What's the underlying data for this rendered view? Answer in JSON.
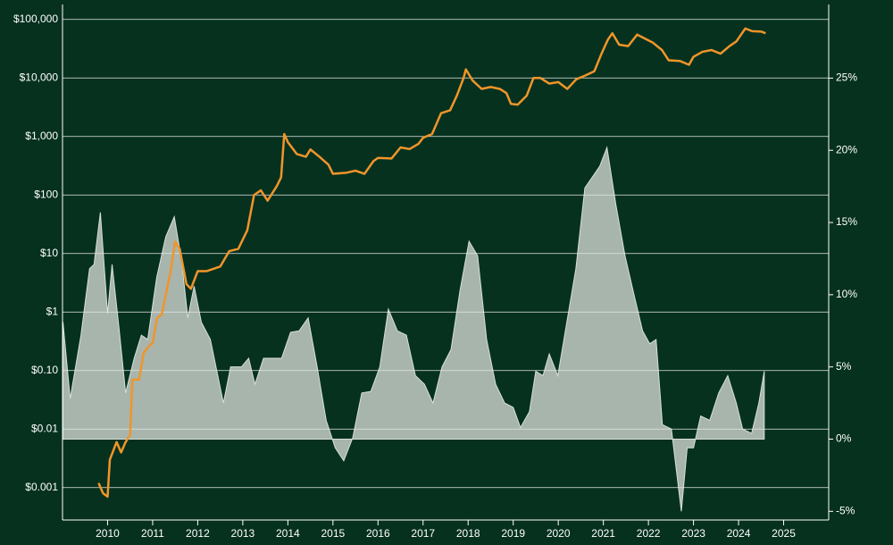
{
  "chart_data": {
    "type": "line-area",
    "xlim": [
      2009,
      2026
    ],
    "xticks": [
      2010,
      2011,
      2012,
      2013,
      2014,
      2015,
      2016,
      2017,
      2018,
      2019,
      2020,
      2021,
      2022,
      2023,
      2024,
      2025
    ],
    "ylim": [
      0.00028,
      180000
    ],
    "log_y": true,
    "yticks": [
      {
        "value": 0.001,
        "label": "$0.001"
      },
      {
        "value": 0.01,
        "label": "$0.01"
      },
      {
        "value": 0.1,
        "label": "$0.10"
      },
      {
        "value": 1,
        "label": "$1"
      },
      {
        "value": 10,
        "label": "$10"
      },
      {
        "value": 100,
        "label": "$100"
      },
      {
        "value": 1000,
        "label": "$1,000"
      },
      {
        "value": 10000,
        "label": "$10,000"
      },
      {
        "value": 100000,
        "label": "$100,000"
      }
    ],
    "y2lim": [
      -5.6,
      30.1
    ],
    "y2ticks": [
      {
        "value": -5,
        "label": "-5%"
      },
      {
        "value": 0,
        "label": "0%"
      },
      {
        "value": 5,
        "label": "5%"
      },
      {
        "value": 10,
        "label": "10%"
      },
      {
        "value": 15,
        "label": "15%"
      },
      {
        "value": 20,
        "label": "20%"
      },
      {
        "value": 25,
        "label": "25%"
      }
    ],
    "grid": true,
    "series": [
      {
        "kind": "area",
        "axis": "y2",
        "color": "#b9c4bc",
        "x": [
          2009.01,
          2009.17,
          2009.41,
          2009.6,
          2009.7,
          2009.84,
          2010.0,
          2010.1,
          2010.26,
          2010.4,
          2010.59,
          2010.75,
          2010.89,
          2011.09,
          2011.29,
          2011.48,
          2011.64,
          2011.78,
          2011.92,
          2012.08,
          2012.28,
          2012.57,
          2012.73,
          2012.97,
          2013.13,
          2013.27,
          2013.46,
          2013.66,
          2013.86,
          2014.06,
          2014.25,
          2014.45,
          2014.65,
          2014.85,
          2015.05,
          2015.24,
          2015.44,
          2015.64,
          2015.84,
          2016.04,
          2016.23,
          2016.43,
          2016.63,
          2016.83,
          2017.03,
          2017.22,
          2017.42,
          2017.62,
          2017.82,
          2018.02,
          2018.21,
          2018.41,
          2018.61,
          2018.81,
          2019.0,
          2019.16,
          2019.36,
          2019.5,
          2019.66,
          2019.8,
          2019.99,
          2020.19,
          2020.39,
          2020.59,
          2020.79,
          2020.92,
          2021.08,
          2021.28,
          2021.48,
          2021.68,
          2021.87,
          2022.03,
          2022.17,
          2022.31,
          2022.51,
          2022.73,
          2022.86,
          2023.0,
          2023.16,
          2023.36,
          2023.56,
          2023.76,
          2023.95,
          2024.09,
          2024.29,
          2024.45,
          2024.57
        ],
        "values": [
          8.1,
          2.8,
          7.2,
          11.8,
          12.1,
          15.7,
          8.7,
          12.1,
          7.5,
          3.2,
          5.6,
          7.2,
          6.9,
          11.2,
          14,
          15.4,
          12.4,
          8.4,
          10.6,
          8.1,
          6.9,
          2.5,
          5.0,
          5.0,
          5.6,
          3.8,
          5.6,
          5.6,
          5.6,
          7.4,
          7.5,
          8.4,
          5.0,
          1.3,
          -0.6,
          -1.5,
          0.1,
          3.2,
          3.3,
          5.0,
          9.0,
          7.5,
          7.2,
          4.4,
          3.8,
          2.5,
          5.0,
          6.2,
          10.3,
          13.7,
          12.7,
          6.9,
          3.8,
          2.5,
          2.2,
          0.8,
          1.9,
          4.7,
          4.4,
          5.9,
          4.4,
          8.1,
          11.8,
          17.4,
          18.3,
          18.9,
          20.2,
          16.2,
          12.7,
          10.0,
          7.5,
          6.6,
          6.9,
          1.0,
          0.7,
          -5.0,
          -0.6,
          -0.6,
          1.6,
          1.3,
          3.2,
          4.4,
          2.5,
          0.7,
          0.4,
          2.5,
          4.7
        ]
      },
      {
        "kind": "line",
        "axis": "y",
        "color": "#f0952a",
        "x": [
          2009.8,
          2009.9,
          2010.0,
          2010.05,
          2010.2,
          2010.3,
          2010.4,
          2010.5,
          2010.55,
          2010.7,
          2010.8,
          2010.9,
          2011.0,
          2011.1,
          2011.2,
          2011.4,
          2011.5,
          2011.6,
          2011.75,
          2011.85,
          2012.0,
          2012.2,
          2012.5,
          2012.7,
          2012.9,
          2013.1,
          2013.25,
          2013.4,
          2013.55,
          2013.75,
          2013.85,
          2013.92,
          2014.0,
          2014.2,
          2014.4,
          2014.5,
          2014.7,
          2014.9,
          2015.0,
          2015.3,
          2015.5,
          2015.7,
          2015.9,
          2016.0,
          2016.3,
          2016.5,
          2016.7,
          2016.9,
          2017.0,
          2017.2,
          2017.4,
          2017.6,
          2017.75,
          2017.9,
          2017.95,
          2018.1,
          2018.3,
          2018.5,
          2018.7,
          2018.85,
          2018.95,
          2019.1,
          2019.3,
          2019.45,
          2019.6,
          2019.8,
          2020.0,
          2020.2,
          2020.4,
          2020.6,
          2020.8,
          2020.95,
          2021.1,
          2021.2,
          2021.35,
          2021.55,
          2021.75,
          2021.9,
          2022.1,
          2022.3,
          2022.45,
          2022.7,
          2022.9,
          2023.0,
          2023.2,
          2023.4,
          2023.6,
          2023.8,
          2023.95,
          2024.15,
          2024.3,
          2024.5,
          2024.6
        ],
        "values": [
          0.0012,
          0.0008,
          0.0007,
          0.003,
          0.006,
          0.004,
          0.006,
          0.008,
          0.07,
          0.07,
          0.2,
          0.25,
          0.3,
          0.8,
          0.9,
          5,
          16,
          12,
          3,
          2.5,
          5,
          5,
          6,
          11,
          12,
          25,
          100,
          120,
          80,
          140,
          200,
          1100,
          800,
          500,
          450,
          600,
          450,
          330,
          230,
          240,
          260,
          230,
          380,
          430,
          420,
          650,
          610,
          750,
          950,
          1100,
          2500,
          2800,
          5000,
          10000,
          14000,
          9000,
          6500,
          7000,
          6500,
          5500,
          3600,
          3500,
          5000,
          10000,
          10000,
          8000,
          8500,
          6500,
          9500,
          11000,
          13000,
          25000,
          45000,
          58000,
          37000,
          35000,
          55000,
          48000,
          40000,
          30000,
          20000,
          19500,
          16800,
          23000,
          28000,
          30000,
          26000,
          35000,
          42000,
          70000,
          63000,
          62000,
          58000
        ]
      }
    ]
  }
}
